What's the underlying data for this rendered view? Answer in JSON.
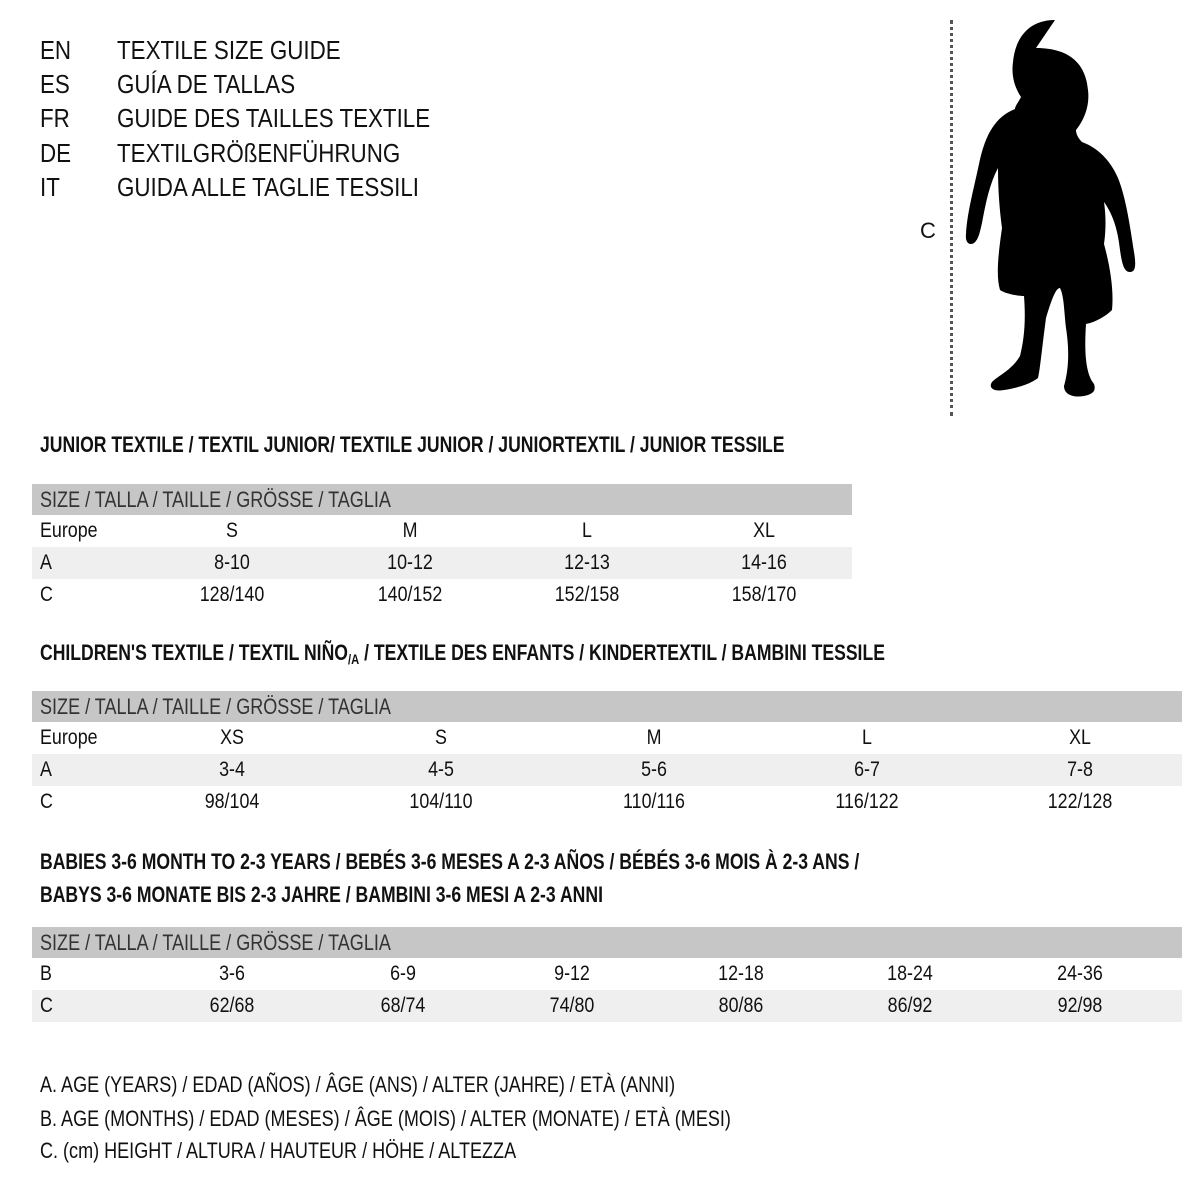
{
  "titles": [
    {
      "code": "EN",
      "text": "TEXTILE SIZE GUIDE"
    },
    {
      "code": "ES",
      "text": "GUÍA DE TALLAS"
    },
    {
      "code": "FR",
      "text": "GUIDE DES TAILLES TEXTILE"
    },
    {
      "code": "DE",
      "text": "TEXTILGRÖßENFÜHRUNG"
    },
    {
      "code": "IT",
      "text": "GUIDA ALLE TAGLIE TESSILI"
    }
  ],
  "figure": {
    "measure_label": "C",
    "icon": "child-silhouette"
  },
  "colors": {
    "header_bg": "#c6c6c6",
    "stripe_bg": "#efefef",
    "text": "#111111"
  },
  "junior": {
    "title": "JUNIOR TEXTILE / TEXTIL JUNIOR/ TEXTILE JUNIOR / JUNIORTEXTIL / JUNIOR TESSILE",
    "header": "SIZE / TALLA / TAILLE / GRÖSSE / TAGLIA",
    "rows": [
      {
        "label": "Europe",
        "cells": [
          "S",
          "M",
          "L",
          "XL"
        ]
      },
      {
        "label": "A",
        "cells": [
          "8-10",
          "10-12",
          "12-13",
          "14-16"
        ]
      },
      {
        "label": "C",
        "cells": [
          "128/140",
          "140/152",
          "152/158",
          "158/170"
        ]
      }
    ]
  },
  "children": {
    "title_a": "CHILDREN'S TEXTILE / TEXTIL NIÑO",
    "title_sub": "/A",
    "title_b": " / TEXTILE DES ENFANTS / KINDERTEXTIL / BAMBINI TESSILE",
    "header": "SIZE / TALLA / TAILLE / GRÖSSE / TAGLIA",
    "rows": [
      {
        "label": "Europe",
        "cells": [
          "XS",
          "S",
          "M",
          "L",
          "XL"
        ]
      },
      {
        "label": "A",
        "cells": [
          "3-4",
          "4-5",
          "5-6",
          "6-7",
          "7-8"
        ]
      },
      {
        "label": "C",
        "cells": [
          "98/104",
          "104/110",
          "110/116",
          "116/122",
          "122/128"
        ]
      }
    ]
  },
  "babies": {
    "title_line1": "BABIES 3-6 MONTH TO 2-3 YEARS / BEBÉS 3-6 MESES A 2-3 AÑOS / BÉBÉS 3-6 MOIS À 2-3 ANS /",
    "title_line2": "BABYS 3-6 MONATE BIS 2-3 JAHRE / BAMBINI 3-6 MESI A 2-3 ANNI",
    "header": "SIZE / TALLA / TAILLE / GRÖSSE / TAGLIA",
    "rows": [
      {
        "label": "B",
        "cells": [
          "3-6",
          "6-9",
          "9-12",
          "12-18",
          "18-24",
          "24-36"
        ]
      },
      {
        "label": "C",
        "cells": [
          "62/68",
          "68/74",
          "74/80",
          "80/86",
          "86/92",
          "92/98"
        ]
      }
    ]
  },
  "legend": [
    "A. AGE (YEARS) / EDAD (AÑOS) / ÂGE (ANS) / ALTER (JAHRE) / ETÀ (ANNI)",
    "B. AGE (MONTHS) / EDAD (MESES) / ÂGE (MOIS) / ALTER (MONATE) / ETÀ (MESI)",
    "C. (cm) HEIGHT / ALTURA / HAUTEUR / HÖHE / ALTEZZA"
  ]
}
